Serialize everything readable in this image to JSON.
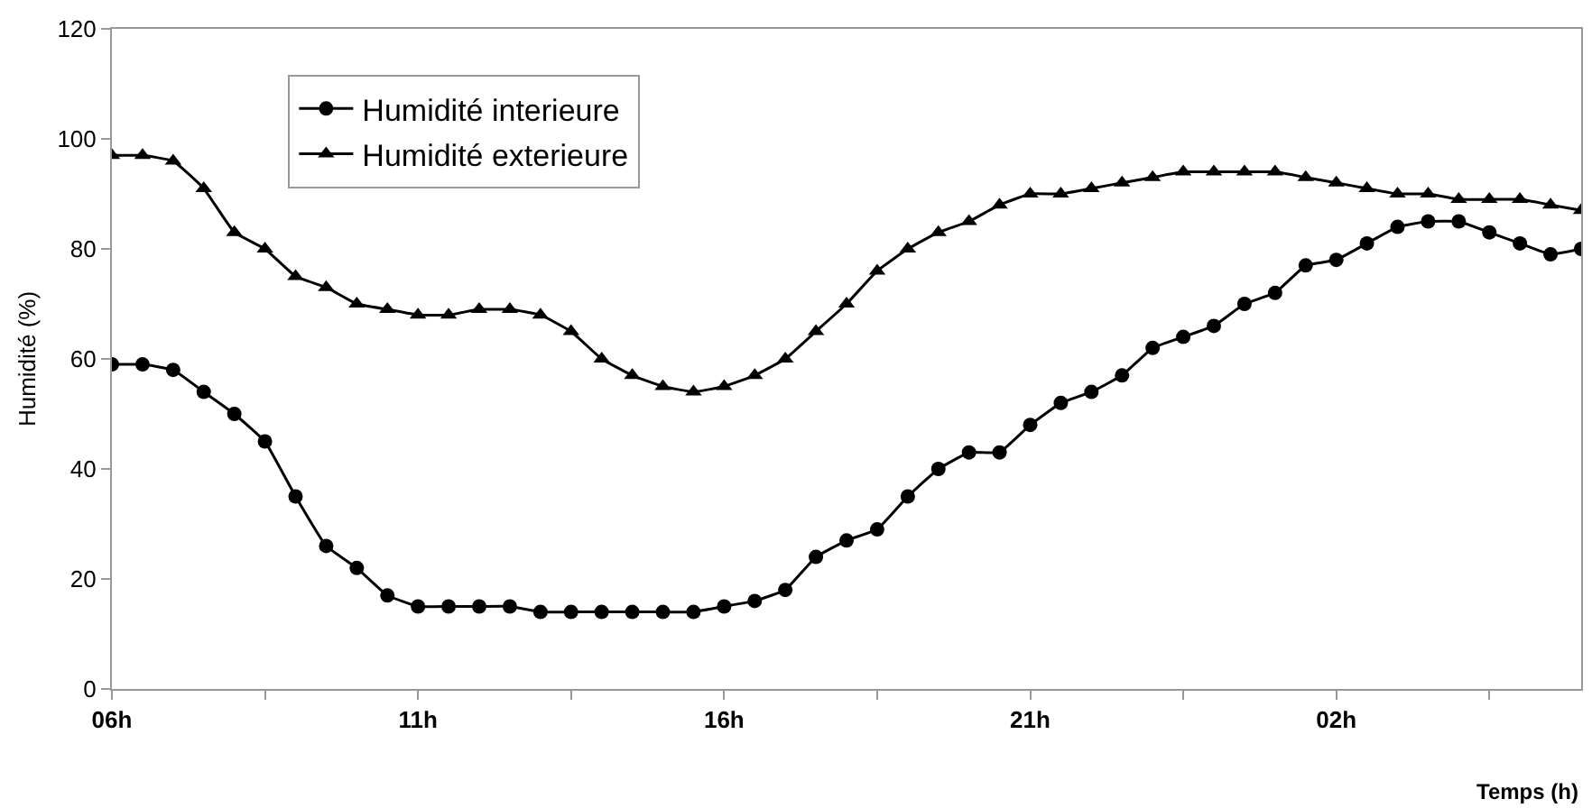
{
  "chart_data": {
    "type": "line",
    "xlabel": "Temps (h)",
    "ylabel": "Humidité (%)",
    "x": [
      "--01-01T06:00",
      "--01-01T06:30",
      "--01-01T07:00",
      "--01-01T07:30",
      "--01-01T08:00",
      "--01-01T08:30",
      "--01-01T09:00",
      "--01-01T09:30",
      "--01-01T10:00",
      "--01-01T10:30",
      "--01-01T11:00",
      "--01-01T11:30",
      "--01-01T12:00",
      "--01-01T12:30",
      "--01-01T13:00",
      "--01-01T13:30",
      "--01-01T14:00",
      "--01-01T14:30",
      "--01-01T15:00",
      "--01-01T15:30",
      "--01-01T16:00",
      "--01-01T16:30",
      "--01-01T17:00",
      "--01-01T17:30",
      "--01-01T18:00",
      "--01-01T18:30",
      "--01-01T19:00",
      "--01-01T19:30",
      "--01-01T20:00",
      "--01-01T20:30",
      "--01-01T21:00",
      "--01-01T21:30",
      "--01-01T22:00",
      "--01-01T22:30",
      "--01-01T23:00",
      "--01-01T23:30",
      "--01-02T00:00",
      "--01-02T00:30",
      "--01-02T01:00",
      "--01-02T01:30",
      "--01-02T02:00",
      "--01-02T02:30",
      "--01-02T03:00",
      "--01-02T03:30",
      "--01-02T04:00",
      "--01-02T04:30",
      "--01-02T05:00",
      "--01-02T05:30",
      "--01-02T06:00"
    ],
    "series": [
      {
        "name": "Humidité interieure",
        "color": "#000000",
        "marker": "circle",
        "values": [
          59,
          59,
          58,
          54,
          50,
          45,
          35,
          26,
          22,
          17,
          15,
          15,
          15,
          15,
          14,
          14,
          14,
          14,
          14,
          14,
          15,
          16,
          18,
          24,
          27,
          29,
          35,
          40,
          43,
          43,
          48,
          52,
          54,
          57,
          62,
          64,
          66,
          70,
          72,
          77,
          78,
          81,
          84,
          85,
          85,
          83,
          81,
          79,
          80
        ]
      },
      {
        "name": "Humidité exterieure",
        "color": "#000000",
        "marker": "triangle",
        "values": [
          97,
          97,
          96,
          91,
          83,
          80,
          75,
          73,
          70,
          69,
          68,
          68,
          69,
          69,
          68,
          65,
          60,
          57,
          55,
          54,
          55,
          57,
          60,
          65,
          70,
          76,
          80,
          83,
          85,
          88,
          90,
          90,
          91,
          92,
          93,
          94,
          94,
          94,
          94,
          93,
          92,
          91,
          90,
          90,
          89,
          89,
          89,
          88,
          87
        ]
      }
    ],
    "xlim": [
      "--01-01T06:00",
      "--01-02T06:00"
    ],
    "xticks": [
      {
        "value": "--01-01T06:00",
        "label": "06h"
      },
      {
        "value": "--01-01T08:30",
        "label": null
      },
      {
        "value": "--01-01T11:00",
        "label": "11h"
      },
      {
        "value": "--01-01T13:30",
        "label": null
      },
      {
        "value": "--01-01T16:00",
        "label": "16h"
      },
      {
        "value": "--01-01T18:30",
        "label": null
      },
      {
        "value": "--01-01T21:00",
        "label": "21h"
      },
      {
        "value": "--01-01T23:30",
        "label": null
      },
      {
        "value": "--01-02T02:00",
        "label": "02h"
      },
      {
        "value": "--01-02T04:30",
        "label": null
      }
    ],
    "ylim": [
      0,
      120
    ],
    "yticks": [
      0,
      20,
      40,
      60,
      80,
      100,
      120
    ],
    "legend": "top left",
    "line_style": "solid"
  }
}
